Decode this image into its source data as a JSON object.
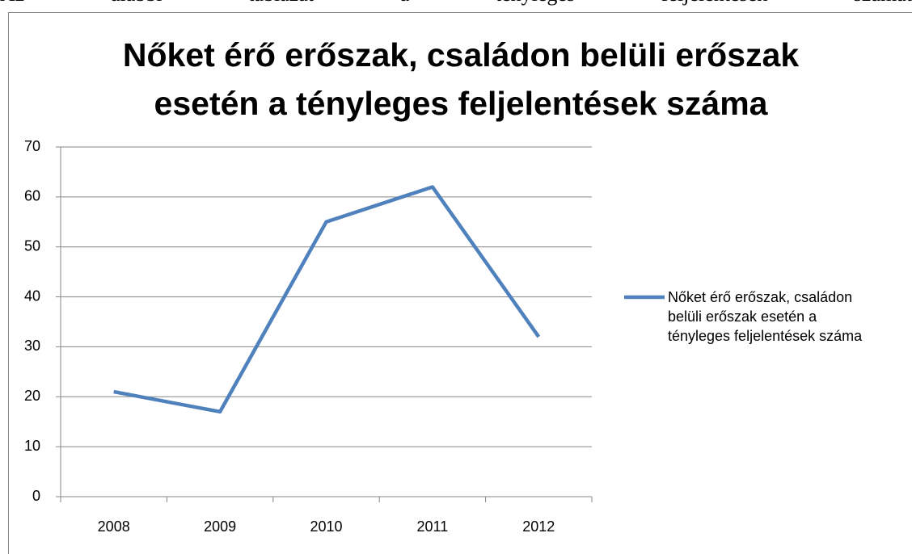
{
  "document_text": "Az alábbi táblázat a tényleges feljelentések számát",
  "chart_data": {
    "type": "line",
    "title": "Nőket érő erőszak, családon belüli erőszak esetén a tényleges feljelentések száma",
    "categories": [
      "2008",
      "2009",
      "2010",
      "2011",
      "2012"
    ],
    "series": [
      {
        "name": "Nőket érő erőszak, családon belüli erőszak esetén a tényleges feljelentések száma",
        "color": "#4f81bd",
        "values": [
          21,
          17,
          55,
          62,
          32
        ]
      }
    ],
    "ylim": [
      0,
      70
    ],
    "yticks": [
      0,
      10,
      20,
      30,
      40,
      50,
      60,
      70
    ],
    "grid": true,
    "legend": "right"
  }
}
